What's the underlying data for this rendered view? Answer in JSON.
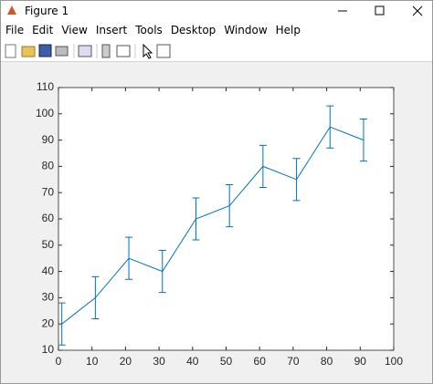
{
  "window": {
    "title": "Figure 1",
    "menu": [
      "File",
      "Edit",
      "View",
      "Insert",
      "Tools",
      "Desktop",
      "Window",
      "Help"
    ]
  },
  "chart_data": {
    "type": "errorbar",
    "x": [
      1,
      11,
      21,
      31,
      41,
      51,
      61,
      71,
      81,
      91
    ],
    "values": [
      20,
      30,
      45,
      40,
      60,
      65,
      80,
      75,
      95,
      90
    ],
    "errors": [
      8,
      8,
      8,
      8,
      8,
      8,
      8,
      8,
      8,
      8
    ],
    "color": "#0072bd",
    "xlim": [
      0,
      100
    ],
    "xticks": [
      0,
      10,
      20,
      30,
      40,
      50,
      60,
      70,
      80,
      90,
      100
    ],
    "ylim": [
      10,
      110
    ],
    "yticks": [
      10,
      20,
      30,
      40,
      50,
      60,
      70,
      80,
      90,
      100,
      110
    ]
  }
}
